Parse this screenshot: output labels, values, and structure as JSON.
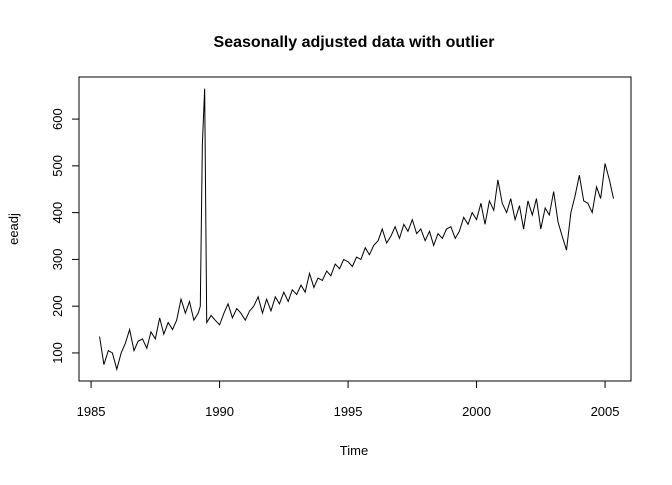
{
  "chart_data": {
    "type": "line",
    "title": "Seasonally adjusted data with outlier",
    "x_label": "Time",
    "y_label": "eeadj",
    "color": "#000000",
    "xlim": [
      1984.53,
      2006.01
    ],
    "ylim": [
      40,
      690
    ],
    "xticks": [
      1985,
      1990,
      1995,
      2000,
      2005
    ],
    "yticks": [
      100,
      200,
      300,
      400,
      500,
      600
    ],
    "x": [
      1985.33,
      1985.5,
      1985.67,
      1985.83,
      1986.0,
      1986.17,
      1986.33,
      1986.5,
      1986.67,
      1986.83,
      1987.0,
      1987.17,
      1987.33,
      1987.5,
      1987.67,
      1987.83,
      1988.0,
      1988.17,
      1988.33,
      1988.5,
      1988.67,
      1988.83,
      1989.0,
      1989.17,
      1989.25,
      1989.33,
      1989.42,
      1989.5,
      1989.67,
      1989.83,
      1990.0,
      1990.17,
      1990.33,
      1990.5,
      1990.67,
      1990.83,
      1991.0,
      1991.17,
      1991.33,
      1991.5,
      1991.67,
      1991.83,
      1992.0,
      1992.17,
      1992.33,
      1992.5,
      1992.67,
      1992.83,
      1993.0,
      1993.17,
      1993.33,
      1993.5,
      1993.67,
      1993.83,
      1994.0,
      1994.17,
      1994.33,
      1994.5,
      1994.67,
      1994.83,
      1995.0,
      1995.17,
      1995.33,
      1995.5,
      1995.67,
      1995.83,
      1996.0,
      1996.17,
      1996.33,
      1996.5,
      1996.67,
      1996.83,
      1997.0,
      1997.17,
      1997.33,
      1997.5,
      1997.67,
      1997.83,
      1998.0,
      1998.17,
      1998.33,
      1998.5,
      1998.67,
      1998.83,
      1999.0,
      1999.17,
      1999.33,
      1999.5,
      1999.67,
      1999.83,
      2000.0,
      2000.17,
      2000.33,
      2000.5,
      2000.67,
      2000.83,
      2001.0,
      2001.17,
      2001.33,
      2001.5,
      2001.67,
      2001.83,
      2002.0,
      2002.17,
      2002.33,
      2002.5,
      2002.67,
      2002.83,
      2003.0,
      2003.17,
      2003.33,
      2003.5,
      2003.67,
      2003.83,
      2004.0,
      2004.17,
      2004.33,
      2004.5,
      2004.67,
      2004.83,
      2005.0,
      2005.17,
      2005.33
    ],
    "values": [
      135,
      75,
      105,
      100,
      65,
      100,
      120,
      150,
      105,
      125,
      130,
      110,
      145,
      130,
      175,
      140,
      165,
      150,
      170,
      215,
      185,
      210,
      170,
      185,
      200,
      545,
      665,
      165,
      180,
      170,
      160,
      185,
      205,
      175,
      195,
      185,
      170,
      190,
      200,
      220,
      185,
      215,
      190,
      220,
      205,
      230,
      210,
      235,
      225,
      245,
      230,
      270,
      240,
      260,
      255,
      275,
      265,
      290,
      280,
      300,
      295,
      285,
      305,
      300,
      325,
      310,
      330,
      340,
      365,
      335,
      350,
      370,
      345,
      375,
      360,
      385,
      355,
      365,
      340,
      360,
      330,
      355,
      345,
      365,
      370,
      345,
      360,
      390,
      375,
      400,
      385,
      420,
      375,
      425,
      405,
      470,
      420,
      400,
      430,
      385,
      415,
      365,
      425,
      395,
      430,
      365,
      410,
      395,
      445,
      380,
      350,
      320,
      400,
      435,
      480,
      425,
      420,
      400,
      455,
      430,
      505,
      470,
      430
    ]
  }
}
